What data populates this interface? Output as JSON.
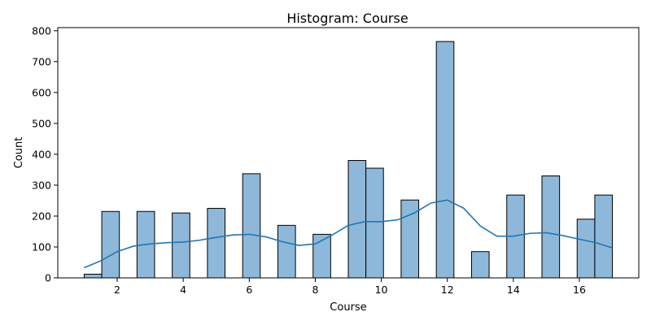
{
  "chart_data": {
    "type": "bar",
    "title": "Histogram: Course",
    "xlabel": "Course",
    "ylabel": "Count",
    "xlim": [
      0.2,
      17.8
    ],
    "ylim": [
      0,
      810
    ],
    "x_ticks": [
      2,
      4,
      6,
      8,
      10,
      12,
      14,
      16
    ],
    "y_ticks": [
      0,
      100,
      200,
      300,
      400,
      500,
      600,
      700,
      800
    ],
    "bin_width": 0.533,
    "bins": [
      {
        "x": 1.0,
        "count": 12
      },
      {
        "x": 1.533,
        "count": 215
      },
      {
        "x": 2.6,
        "count": 215
      },
      {
        "x": 3.667,
        "count": 210
      },
      {
        "x": 4.733,
        "count": 225
      },
      {
        "x": 5.8,
        "count": 337
      },
      {
        "x": 6.867,
        "count": 170
      },
      {
        "x": 7.933,
        "count": 141
      },
      {
        "x": 9.0,
        "count": 380
      },
      {
        "x": 9.533,
        "count": 355
      },
      {
        "x": 10.6,
        "count": 252
      },
      {
        "x": 11.667,
        "count": 765
      },
      {
        "x": 12.733,
        "count": 85
      },
      {
        "x": 13.8,
        "count": 268
      },
      {
        "x": 14.867,
        "count": 330
      },
      {
        "x": 15.933,
        "count": 190
      },
      {
        "x": 16.467,
        "count": 268
      }
    ],
    "kde": {
      "x": [
        1.0,
        1.5,
        2.0,
        2.5,
        3.0,
        3.5,
        4.0,
        4.5,
        5.0,
        5.5,
        6.0,
        6.5,
        7.0,
        7.5,
        8.0,
        8.5,
        9.0,
        9.5,
        10.0,
        10.5,
        11.0,
        11.5,
        12.0,
        12.5,
        13.0,
        13.5,
        14.0,
        14.5,
        15.0,
        15.5,
        16.0,
        16.5,
        17.0
      ],
      "y": [
        33,
        55,
        85,
        103,
        110,
        114,
        116,
        122,
        131,
        139,
        141,
        133,
        117,
        105,
        110,
        138,
        170,
        182,
        182,
        188,
        210,
        242,
        252,
        225,
        168,
        135,
        135,
        144,
        146,
        137,
        125,
        114,
        97
      ]
    },
    "colors": {
      "bar_fill": "#8db8d9",
      "bar_edge": "#000000",
      "kde_line": "#1f77b4"
    },
    "grid": false
  }
}
